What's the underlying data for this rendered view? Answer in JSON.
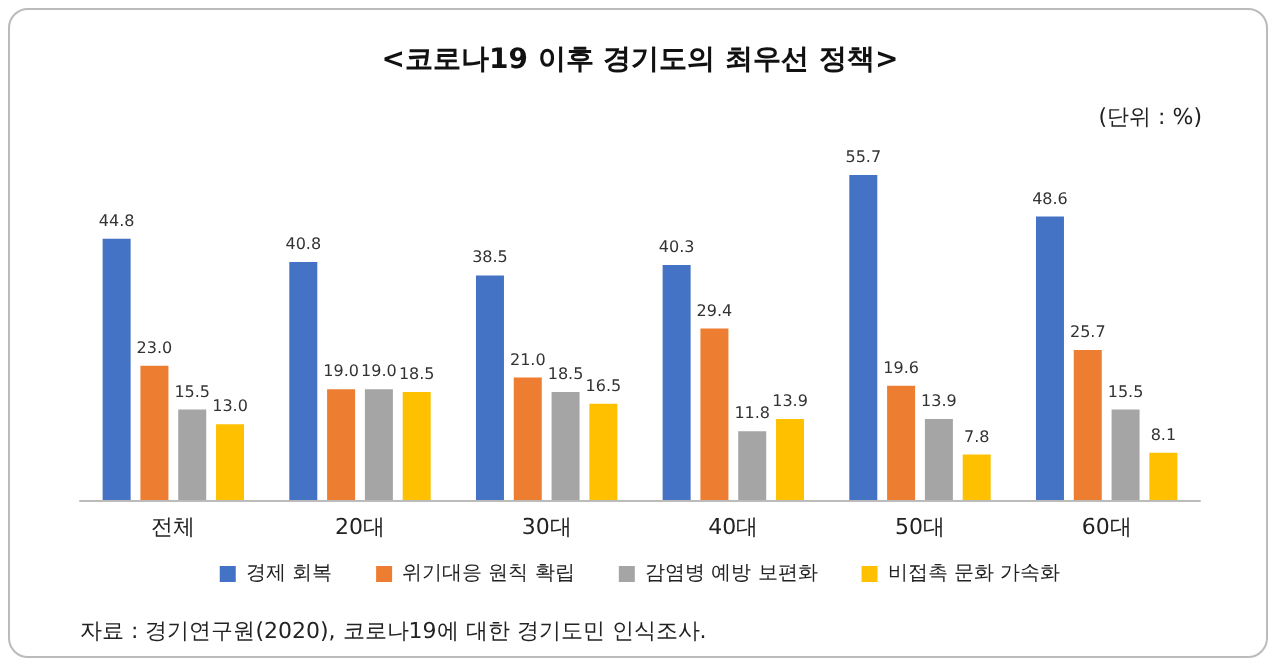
{
  "chart_data": {
    "type": "bar",
    "title": "<코로나19 이후 경기도의 최우선 정책>",
    "subtitle": "(단위 : %)",
    "categories": [
      "전체",
      "20대",
      "30대",
      "40대",
      "50대",
      "60대"
    ],
    "series": [
      {
        "name": "경제 회복",
        "color": "#4472c4",
        "values": [
          44.8,
          40.8,
          38.5,
          40.3,
          55.7,
          48.6
        ],
        "value_labels": [
          "44.8",
          "40.8",
          "38.5",
          "40.3",
          "55.7",
          "48.6"
        ]
      },
      {
        "name": "위기대응 원칙 확립",
        "color": "#ed7d31",
        "values": [
          23.0,
          19.0,
          21.0,
          29.4,
          19.6,
          25.7
        ],
        "value_labels": [
          "23.0",
          "19.0",
          "21.0",
          "29.4",
          "19.6",
          "25.7"
        ]
      },
      {
        "name": "감염병 예방 보편화",
        "color": "#a5a5a5",
        "values": [
          15.5,
          19.0,
          18.5,
          11.8,
          13.9,
          15.5
        ],
        "value_labels": [
          "15.5",
          "19.0",
          "18.5",
          "11.8",
          "13.9",
          "15.5"
        ]
      },
      {
        "name": "비접촉 문화 가속화",
        "color": "#ffc000",
        "values": [
          13.0,
          18.5,
          16.5,
          13.9,
          7.8,
          8.1
        ],
        "value_labels": [
          "13.0",
          "18.5",
          "16.5",
          "13.9",
          "7.8",
          "8.1"
        ]
      }
    ],
    "legend": "bottom",
    "annotations": [
      "자료 : 경기연구원(2020), 코로나19에 대한 경기도민 인식조사."
    ]
  }
}
